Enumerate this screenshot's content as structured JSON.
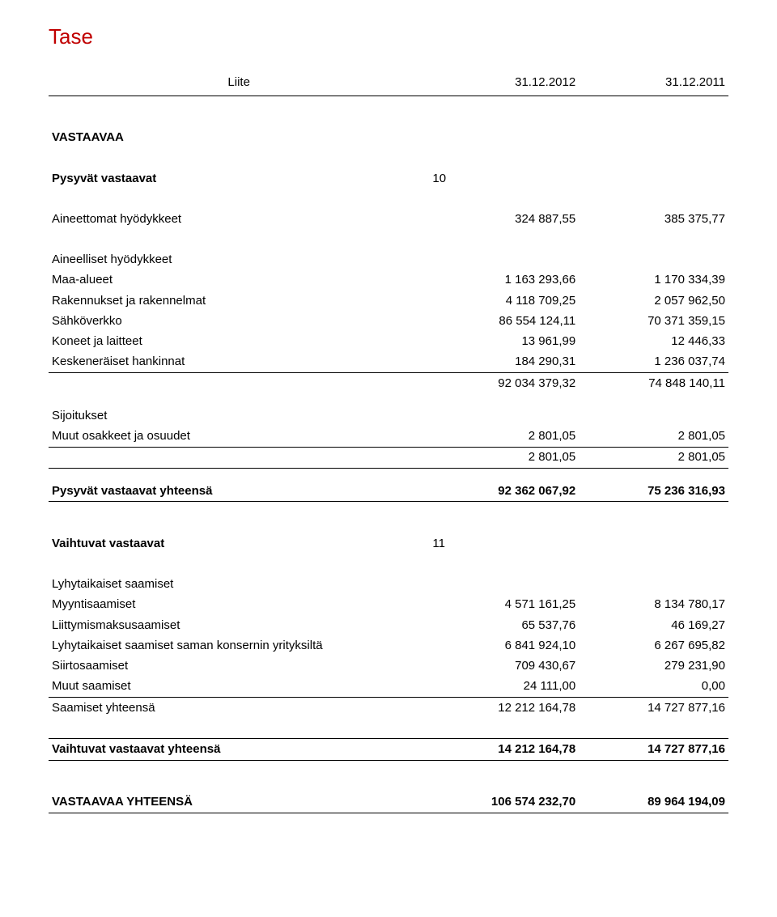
{
  "accent_color": "#c00000",
  "text_color": "#000000",
  "bg_color": "#ffffff",
  "title": "Tase",
  "header_col_label": "Liite",
  "header_col_a": "31.12.2012",
  "header_col_b": "31.12.2011",
  "vastaavaa_heading": "VASTAAVAA",
  "pysyvat_heading": "Pysyvät vastaavat",
  "pysyvat_note": "10",
  "aineettomat": {
    "label": "Aineettomat hyödykkeet",
    "a": "324 887,55",
    "b": "385 375,77"
  },
  "aineelliset_label": "Aineelliset hyödykkeet",
  "aineelliset_rows": [
    {
      "label": "Maa-alueet",
      "a": "1 163 293,66",
      "b": "1 170 334,39"
    },
    {
      "label": "Rakennukset ja rakennelmat",
      "a": "4 118 709,25",
      "b": "2 057 962,50"
    },
    {
      "label": "Sähköverkko",
      "a": "86 554 124,11",
      "b": "70 371 359,15"
    },
    {
      "label": "Koneet ja laitteet",
      "a": "13 961,99",
      "b": "12 446,33"
    },
    {
      "label": "Keskeneräiset hankinnat",
      "a": "184 290,31",
      "b": "1 236 037,74"
    }
  ],
  "aineelliset_sum": {
    "a": "92 034 379,32",
    "b": "74 848 140,11"
  },
  "sijoitukset_label": "Sijoitukset",
  "sijoitukset_row": {
    "label": "Muut osakkeet ja osuudet",
    "a": "2 801,05",
    "b": "2 801,05"
  },
  "sijoitukset_sum": {
    "a": "2 801,05",
    "b": "2 801,05"
  },
  "pysyvat_total": {
    "label": "Pysyvät vastaavat yhteensä",
    "a": "92 362 067,92",
    "b": "75 236 316,93"
  },
  "vaihtuvat_heading": "Vaihtuvat vastaavat",
  "vaihtuvat_note": "11",
  "lyhyt_label": "Lyhytaikaiset saamiset",
  "lyhyt_rows": [
    {
      "label": "Myyntisaamiset",
      "a": "4 571 161,25",
      "b": "8 134 780,17"
    },
    {
      "label": "Liittymismaksusaamiset",
      "a": "65 537,76",
      "b": "46 169,27"
    },
    {
      "label": "Lyhytaikaiset saamiset saman konsernin yrityksiltä",
      "a": "6 841 924,10",
      "b": "6 267 695,82"
    },
    {
      "label": "Siirtosaamiset",
      "a": "709 430,67",
      "b": "279 231,90"
    },
    {
      "label": "Muut saamiset",
      "a": "24 111,00",
      "b": "0,00"
    }
  ],
  "saamiset_total": {
    "label": "Saamiset yhteensä",
    "a": "12 212 164,78",
    "b": "14 727 877,16"
  },
  "vaihtuvat_total": {
    "label": "Vaihtuvat vastaavat yhteensä",
    "a": "14 212 164,78",
    "b": "14 727 877,16"
  },
  "vastaavaa_total": {
    "label": "VASTAAVAA YHTEENSÄ",
    "a": "106 574 232,70",
    "b": "89 964 194,09"
  }
}
